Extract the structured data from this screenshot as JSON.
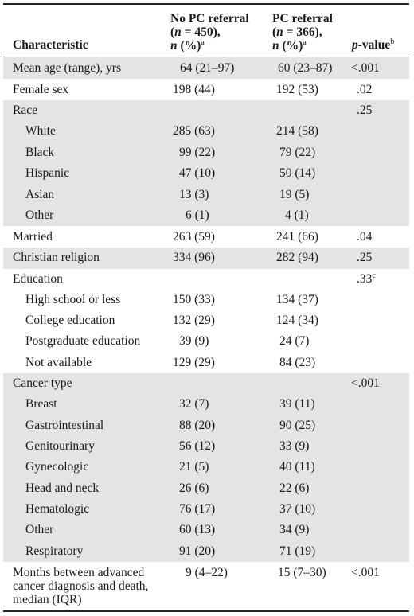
{
  "header": {
    "characteristic": "Characteristic",
    "no_pc": {
      "line1": "No PC referral",
      "n_prefix": "(",
      "n_var": "n",
      "n_value": " = 450),",
      "pct_var": "n",
      "pct_label": " (%)",
      "sup": "a"
    },
    "pc": {
      "line1": "PC referral",
      "n_prefix": "(",
      "n_var": "n",
      "n_value": " = 366),",
      "pct_var": "n",
      "pct_label": " (%)",
      "sup": "a"
    },
    "pvalue": {
      "var": "p",
      "label": "-value",
      "sup": "b"
    }
  },
  "rows": [
    {
      "label": "Mean age (range), yrs",
      "no_pc": "64 (21–97)",
      "pc": "60 (23–87)",
      "p": "<.001",
      "p_sup": ""
    },
    {
      "label": "Female sex",
      "no_pc": "198 (44)",
      "pc": "192 (53)",
      "p": ".02",
      "p_sup": ""
    },
    {
      "label": "Race",
      "no_pc": "",
      "pc": "",
      "p": ".25",
      "p_sup": ""
    },
    {
      "label": "White",
      "no_pc": "285 (63)",
      "pc": "214 (58)",
      "p": "",
      "p_sup": ""
    },
    {
      "label": "Black",
      "no_pc": "99 (22)",
      "pc": "79 (22)",
      "p": "",
      "p_sup": ""
    },
    {
      "label": "Hispanic",
      "no_pc": "47 (10)",
      "pc": "50 (14)",
      "p": "",
      "p_sup": ""
    },
    {
      "label": "Asian",
      "no_pc": "13 (3)",
      "pc": "19 (5)",
      "p": "",
      "p_sup": ""
    },
    {
      "label": "Other",
      "no_pc": "6 (1)",
      "pc": "4 (1)",
      "p": "",
      "p_sup": ""
    },
    {
      "label": "Married",
      "no_pc": "263 (59)",
      "pc": "241 (66)",
      "p": ".04",
      "p_sup": ""
    },
    {
      "label": "Christian religion",
      "no_pc": "334 (96)",
      "pc": "282 (94)",
      "p": ".25",
      "p_sup": ""
    },
    {
      "label": "Education",
      "no_pc": "",
      "pc": "",
      "p": ".33",
      "p_sup": "c"
    },
    {
      "label": "High school or less",
      "no_pc": "150 (33)",
      "pc": "134 (37)",
      "p": "",
      "p_sup": ""
    },
    {
      "label": "College education",
      "no_pc": "132 (29)",
      "pc": "124 (34)",
      "p": "",
      "p_sup": ""
    },
    {
      "label": "Postgraduate education",
      "no_pc": "39 (9)",
      "pc": "24 (7)",
      "p": "",
      "p_sup": ""
    },
    {
      "label": "Not available",
      "no_pc": "129 (29)",
      "pc": "84 (23)",
      "p": "",
      "p_sup": ""
    },
    {
      "label": "Cancer type",
      "no_pc": "",
      "pc": "",
      "p": "<.001",
      "p_sup": ""
    },
    {
      "label": "Breast",
      "no_pc": "32 (7)",
      "pc": "39 (11)",
      "p": "",
      "p_sup": ""
    },
    {
      "label": "Gastrointestinal",
      "no_pc": "88 (20)",
      "pc": "90 (25)",
      "p": "",
      "p_sup": ""
    },
    {
      "label": "Genitourinary",
      "no_pc": "56 (12)",
      "pc": "33 (9)",
      "p": "",
      "p_sup": ""
    },
    {
      "label": "Gynecologic",
      "no_pc": "21 (5)",
      "pc": "40 (11)",
      "p": "",
      "p_sup": ""
    },
    {
      "label": "Head and neck",
      "no_pc": "26 (6)",
      "pc": "22 (6)",
      "p": "",
      "p_sup": ""
    },
    {
      "label": "Hematologic",
      "no_pc": "76 (17)",
      "pc": "37 (10)",
      "p": "",
      "p_sup": ""
    },
    {
      "label": "Other",
      "no_pc": "60 (13)",
      "pc": "34 (9)",
      "p": "",
      "p_sup": ""
    },
    {
      "label": "Respiratory",
      "no_pc": "91 (20)",
      "pc": "71 (19)",
      "p": "",
      "p_sup": ""
    },
    {
      "label": "Months between advanced cancer diagnosis and death, median (IQR)",
      "no_pc": "9 (4–22)",
      "pc": "15 (7–30)",
      "p": "<.001",
      "p_sup": ""
    }
  ],
  "colors": {
    "band": "#e4e4e6",
    "rule": "#222222",
    "text": "#1a1a1a"
  }
}
